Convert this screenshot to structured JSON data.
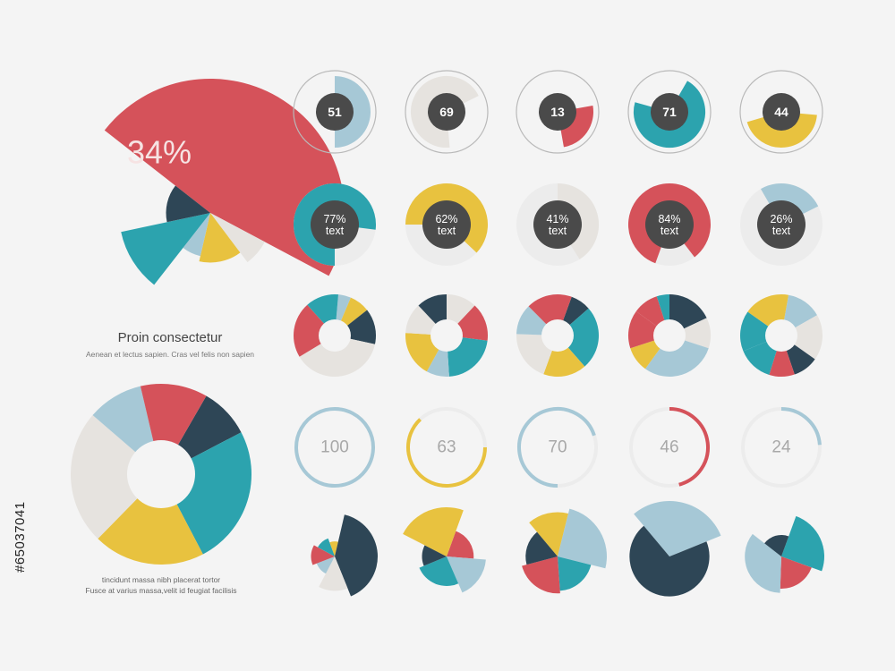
{
  "colors": {
    "red": "#d5525a",
    "teal": "#2ca3ae",
    "yellow": "#e8c23f",
    "lightblue": "#a6c8d6",
    "navy": "#2e4656",
    "light": "#e6e3df",
    "darkgray": "#4a4a4a",
    "track": "#ececec",
    "background": "#f4f4f4"
  },
  "captions": {
    "top_title": "Proin consectetur",
    "top_sub": "Aenean et lectus sapien. Cras vel felis non sapien",
    "bottom_line1": "tincidunt massa nibh placerat tortor",
    "bottom_line2": "Fusce at varius massa,velit id feugiat facilisis"
  },
  "stock_id": "#65037041",
  "chart_data": [
    {
      "id": "big-rose",
      "type": "pie",
      "label": "34%",
      "slices": [
        {
          "value": 34,
          "color": "red",
          "radius": 1.0
        },
        {
          "value": 5,
          "color": "light",
          "radius": 0.46
        },
        {
          "value": 10,
          "color": "yellow",
          "radius": 0.37
        },
        {
          "value": 5,
          "color": "lightblue",
          "radius": 0.33
        },
        {
          "value": 8,
          "color": "teal",
          "radius": 0.68
        },
        {
          "value": 10,
          "color": "navy",
          "radius": 0.33
        }
      ]
    },
    {
      "id": "ring-51",
      "type": "gauge",
      "value": 51,
      "label": "51",
      "color": "lightblue",
      "percent": 50
    },
    {
      "id": "ring-69",
      "type": "gauge",
      "value": 69,
      "label": "69",
      "color": "light",
      "percent": 69
    },
    {
      "id": "ring-13",
      "type": "gauge",
      "value": 13,
      "label": "13",
      "color": "red",
      "percent": 25
    },
    {
      "id": "ring-71",
      "type": "gauge",
      "value": 71,
      "label": "71",
      "color": "teal",
      "percent": 71
    },
    {
      "id": "ring-44",
      "type": "gauge",
      "value": 44,
      "label": "44",
      "color": "yellow",
      "percent": 44
    },
    {
      "id": "donut-77",
      "type": "gauge",
      "value": 77,
      "label": "77%",
      "sublabel": "text",
      "color": "teal"
    },
    {
      "id": "donut-62",
      "type": "gauge",
      "value": 62,
      "label": "62%",
      "sublabel": "text",
      "color": "yellow"
    },
    {
      "id": "donut-41",
      "type": "gauge",
      "value": 41,
      "label": "41%",
      "sublabel": "text",
      "color": "light"
    },
    {
      "id": "donut-84",
      "type": "gauge",
      "value": 84,
      "label": "84%",
      "sublabel": "text",
      "color": "red"
    },
    {
      "id": "donut-26",
      "type": "gauge",
      "value": 26,
      "label": "26%",
      "sublabel": "text",
      "color": "lightblue"
    },
    {
      "id": "multi-1",
      "type": "pie",
      "slices": [
        {
          "value": 5,
          "color": "lightblue"
        },
        {
          "value": 8,
          "color": "yellow"
        },
        {
          "value": 14,
          "color": "navy"
        },
        {
          "value": 38,
          "color": "light"
        },
        {
          "value": 22,
          "color": "red"
        },
        {
          "value": 13,
          "color": "teal"
        }
      ]
    },
    {
      "id": "multi-2",
      "type": "pie",
      "slices": [
        {
          "value": 12,
          "color": "light"
        },
        {
          "value": 15,
          "color": "red"
        },
        {
          "value": 22,
          "color": "teal"
        },
        {
          "value": 9,
          "color": "lightblue"
        },
        {
          "value": 18,
          "color": "yellow"
        },
        {
          "value": 12,
          "color": "light"
        },
        {
          "value": 12,
          "color": "navy"
        }
      ]
    },
    {
      "id": "multi-3",
      "type": "pie",
      "slices": [
        {
          "value": 8,
          "color": "navy"
        },
        {
          "value": 25,
          "color": "teal"
        },
        {
          "value": 17,
          "color": "yellow"
        },
        {
          "value": 20,
          "color": "light"
        },
        {
          "value": 12,
          "color": "lightblue"
        },
        {
          "value": 18,
          "color": "red"
        }
      ]
    },
    {
      "id": "multi-4",
      "type": "pie",
      "slices": [
        {
          "value": 18,
          "color": "navy"
        },
        {
          "value": 12,
          "color": "light"
        },
        {
          "value": 30,
          "color": "lightblue"
        },
        {
          "value": 10,
          "color": "yellow"
        },
        {
          "value": 15,
          "color": "red"
        },
        {
          "value": 10,
          "color": "red"
        },
        {
          "value": 5,
          "color": "teal"
        }
      ]
    },
    {
      "id": "multi-5",
      "type": "pie",
      "slices": [
        {
          "value": 14,
          "color": "lightblue"
        },
        {
          "value": 18,
          "color": "light"
        },
        {
          "value": 10,
          "color": "navy"
        },
        {
          "value": 10,
          "color": "red"
        },
        {
          "value": 14,
          "color": "teal"
        },
        {
          "value": 16,
          "color": "teal"
        },
        {
          "value": 18,
          "color": "yellow"
        }
      ]
    },
    {
      "id": "big-donut",
      "type": "pie",
      "slices": [
        {
          "value": 9,
          "color": "navy"
        },
        {
          "value": 25,
          "color": "teal"
        },
        {
          "value": 20,
          "color": "yellow"
        },
        {
          "value": 24,
          "color": "light"
        },
        {
          "value": 10,
          "color": "lightblue"
        },
        {
          "value": 12,
          "color": "red"
        }
      ]
    },
    {
      "id": "arc-100",
      "type": "gauge",
      "value": 100,
      "label": "100",
      "color": "lightblue"
    },
    {
      "id": "arc-63",
      "type": "gauge",
      "value": 63,
      "label": "63",
      "color": "yellow"
    },
    {
      "id": "arc-70",
      "type": "gauge",
      "value": 70,
      "label": "70",
      "color": "lightblue"
    },
    {
      "id": "arc-46",
      "type": "gauge",
      "value": 46,
      "label": "46",
      "color": "red"
    },
    {
      "id": "arc-24",
      "type": "gauge",
      "value": 24,
      "label": "24",
      "color": "lightblue"
    },
    {
      "id": "rose-1",
      "type": "pie",
      "slices": [
        {
          "value": 8,
          "color": "yellow",
          "radius": 0.35
        },
        {
          "value": 35,
          "color": "navy",
          "radius": 1.0
        },
        {
          "value": 12,
          "color": "light",
          "radius": 0.8
        },
        {
          "value": 10,
          "color": "lightblue",
          "radius": 0.45
        },
        {
          "value": 12,
          "color": "red",
          "radius": 0.55
        },
        {
          "value": 10,
          "color": "teal",
          "radius": 0.45
        }
      ]
    },
    {
      "id": "rose-2",
      "type": "pie",
      "slices": [
        {
          "value": 18,
          "color": "red",
          "radius": 0.55
        },
        {
          "value": 15,
          "color": "lightblue",
          "radius": 0.8
        },
        {
          "value": 22,
          "color": "teal",
          "radius": 0.6
        },
        {
          "value": 12,
          "color": "navy",
          "radius": 0.5
        },
        {
          "value": 20,
          "color": "yellow",
          "radius": 1.0
        }
      ]
    },
    {
      "id": "rose-3",
      "type": "pie",
      "slices": [
        {
          "value": 15,
          "color": "yellow",
          "radius": 0.9
        },
        {
          "value": 25,
          "color": "lightblue",
          "radius": 1.0
        },
        {
          "value": 20,
          "color": "teal",
          "radius": 0.7
        },
        {
          "value": 22,
          "color": "red",
          "radius": 0.75
        },
        {
          "value": 18,
          "color": "navy",
          "radius": 0.65
        }
      ]
    },
    {
      "id": "rose-4",
      "type": "pie",
      "slices": [
        {
          "value": 30,
          "color": "lightblue",
          "radius": 1.0
        },
        {
          "value": 70,
          "color": "navy",
          "radius": 0.72
        }
      ]
    },
    {
      "id": "rose-5",
      "type": "pie",
      "slices": [
        {
          "value": 25,
          "color": "teal",
          "radius": 1.0
        },
        {
          "value": 20,
          "color": "red",
          "radius": 0.75
        },
        {
          "value": 35,
          "color": "lightblue",
          "radius": 0.85
        },
        {
          "value": 20,
          "color": "navy",
          "radius": 0.5
        }
      ]
    }
  ]
}
